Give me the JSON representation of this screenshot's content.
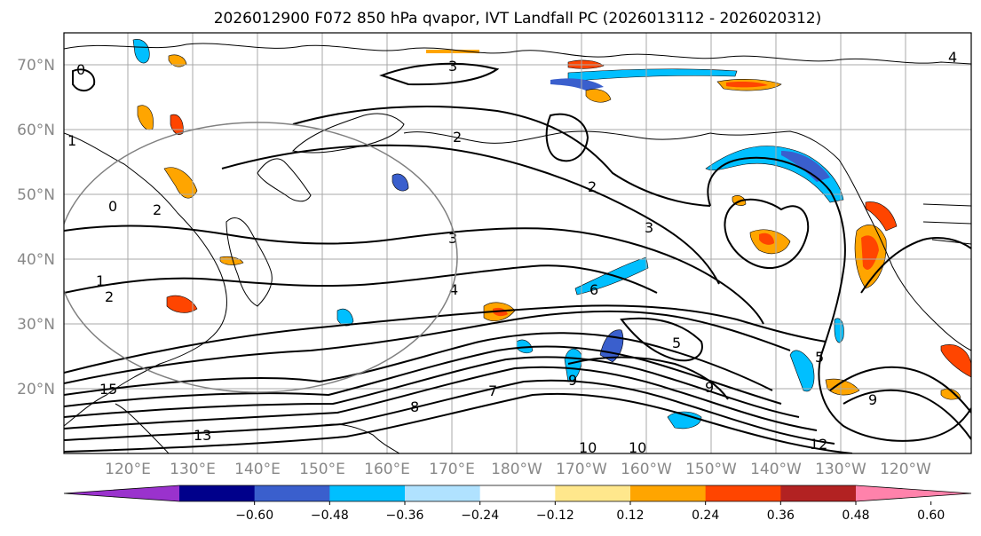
{
  "title": "2026012900 F072 850 hPa qvapor, IVT Landfall PC (2026013112 - 2026020312)",
  "lat_labels": [
    "70°N",
    "60°N",
    "50°N",
    "40°N",
    "30°N",
    "20°N"
  ],
  "lon_labels": [
    "120°E",
    "130°E",
    "140°E",
    "150°E",
    "160°E",
    "170°E",
    "180°W",
    "170°W",
    "160°W",
    "150°W",
    "140°W",
    "130°W",
    "120°W"
  ],
  "colorbar": {
    "colors": [
      "#9a32cd",
      "#00008b",
      "#3a5fcd",
      "#00bfff",
      "#b0e2ff",
      "#ffffff",
      "#ffe78c",
      "#ffa500",
      "#ff4500",
      "#b22222",
      "#ff82ab"
    ],
    "tick_labels": [
      "−0.60",
      "−0.48",
      "−0.36",
      "−0.24",
      "−0.12",
      "0.12",
      "0.24",
      "0.36",
      "0.48",
      "0.60"
    ]
  },
  "contour_labels": [
    "0",
    "1",
    "2",
    "1",
    "2",
    "0",
    "3",
    "2",
    "2",
    "3",
    "3",
    "4",
    "5",
    "6",
    "9",
    "9",
    "8",
    "7",
    "13",
    "10",
    "10",
    "12",
    "9",
    "15",
    "5",
    "4"
  ]
}
